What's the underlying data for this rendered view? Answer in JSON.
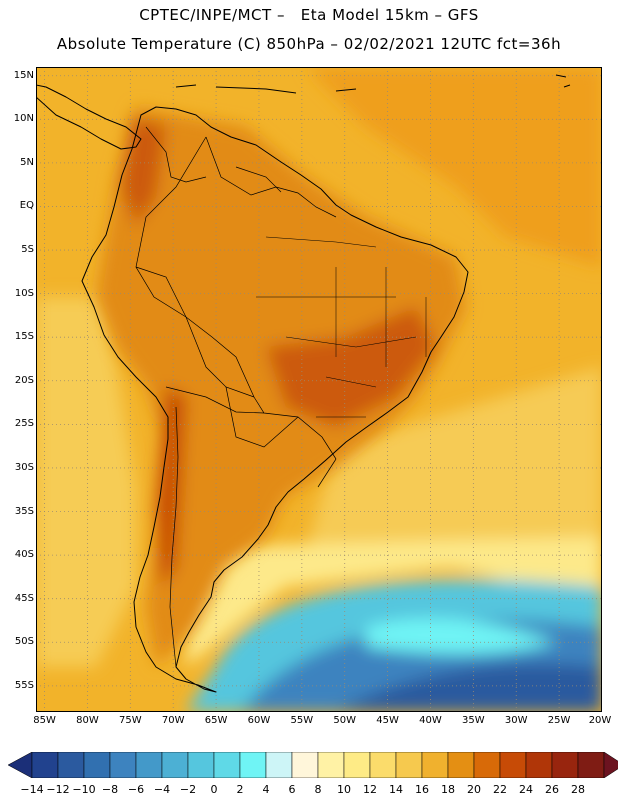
{
  "header": {
    "line1": "CPTEC/INPE/MCT –   Eta Model 15km – GFS",
    "line2": "Absolute Temperature (C) 850hPa – 02/02/2021 12UTC fct=36h"
  },
  "map": {
    "region": "South America",
    "lat_range": [
      -58,
      16
    ],
    "lon_range": [
      -86,
      -20
    ],
    "lat_labels": [
      "15N",
      "10N",
      "5N",
      "EQ",
      "5S",
      "10S",
      "15S",
      "20S",
      "25S",
      "30S",
      "35S",
      "40S",
      "45S",
      "50S",
      "55S"
    ],
    "lat_values": [
      15,
      10,
      5,
      0,
      -5,
      -10,
      -15,
      -20,
      -25,
      -30,
      -35,
      -40,
      -45,
      -50,
      -55
    ],
    "lon_labels": [
      "85W",
      "80W",
      "75W",
      "70W",
      "65W",
      "60W",
      "55W",
      "50W",
      "45W",
      "40W",
      "35W",
      "30W",
      "25W",
      "20W"
    ],
    "lon_values": [
      -85,
      -80,
      -75,
      -70,
      -65,
      -60,
      -55,
      -50,
      -45,
      -40,
      -35,
      -30,
      -25,
      -20
    ],
    "grid": "dotted"
  },
  "colorbar": {
    "labels": [
      "-14",
      "-12",
      "-10",
      "-8",
      "-6",
      "-4",
      "-2",
      "0",
      "2",
      "4",
      "6",
      "8",
      "10",
      "12",
      "14",
      "16",
      "18",
      "20",
      "22",
      "24",
      "26",
      "28"
    ],
    "colors": [
      "#21428e",
      "#2b5a9f",
      "#3170b0",
      "#3d83bf",
      "#4399c9",
      "#4cb0d4",
      "#55c6de",
      "#5fd9e7",
      "#6ff4f5",
      "#cdf5f7",
      "#fff6da",
      "#fff2a5",
      "#feeb86",
      "#fbdc6b",
      "#f6c94e",
      "#f0b12e",
      "#e48f13",
      "#d86a08",
      "#c74b06",
      "#b03608",
      "#98250e",
      "#7f1c14"
    ],
    "low_extension_color": "#1b2f78",
    "high_extension_color": "#6c1320"
  }
}
